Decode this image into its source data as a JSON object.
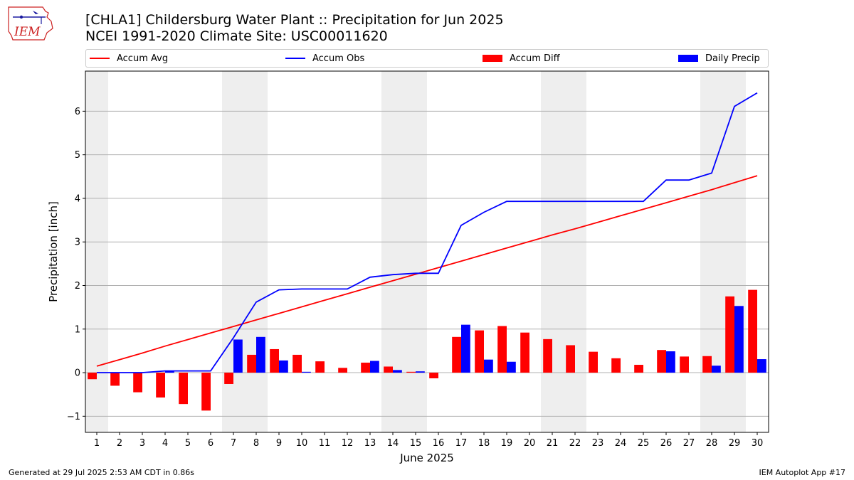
{
  "header": {
    "title_line1": "[CHLA1] Childersburg Water Plant :: Precipitation for Jun 2025",
    "title_line2": "NCEI 1991-2020 Climate Site: USC00011620",
    "logo_text": "IEM"
  },
  "footer": {
    "left": "Generated at 29 Jul 2025 2:53 AM CDT in 0.86s",
    "right": "IEM Autoplot App #17"
  },
  "legend": [
    {
      "label": "Accum Avg",
      "kind": "line",
      "color": "#ff0000"
    },
    {
      "label": "Accum Obs",
      "kind": "line",
      "color": "#0000ff"
    },
    {
      "label": "Accum Diff",
      "kind": "bar",
      "color": "#ff0000"
    },
    {
      "label": "Daily Precip",
      "kind": "bar",
      "color": "#0000ff"
    }
  ],
  "colors": {
    "avg": "#ff0000",
    "obs": "#0000ff",
    "weekend": "#eeeeee",
    "grid": "#b0b0b0"
  },
  "chart_data": {
    "type": "bar",
    "xlabel": "June 2025",
    "ylabel": "Precipitation [inch]",
    "xlim": [
      0.5,
      30.5
    ],
    "ylim": [
      -1.37,
      6.92
    ],
    "yticks": [
      -1,
      0,
      1,
      2,
      3,
      4,
      5,
      6
    ],
    "yticklabels": [
      "−1",
      "0",
      "1",
      "2",
      "3",
      "4",
      "5",
      "6"
    ],
    "days": [
      1,
      2,
      3,
      4,
      5,
      6,
      7,
      8,
      9,
      10,
      11,
      12,
      13,
      14,
      15,
      16,
      17,
      18,
      19,
      20,
      21,
      22,
      23,
      24,
      25,
      26,
      27,
      28,
      29,
      30
    ],
    "weekend_days": [
      1,
      7,
      8,
      14,
      15,
      21,
      22,
      28,
      29
    ],
    "grid": true,
    "series": [
      {
        "name": "Accum Avg",
        "type": "line",
        "values": [
          0.15,
          0.3,
          0.45,
          0.61,
          0.76,
          0.91,
          1.06,
          1.21,
          1.36,
          1.51,
          1.66,
          1.81,
          1.96,
          2.11,
          2.26,
          2.41,
          2.56,
          2.71,
          2.86,
          3.01,
          3.16,
          3.3,
          3.45,
          3.6,
          3.75,
          3.9,
          4.05,
          4.2,
          4.36,
          4.52
        ]
      },
      {
        "name": "Accum Obs",
        "type": "line",
        "values": [
          0.0,
          0.0,
          0.0,
          0.04,
          0.04,
          0.04,
          0.8,
          1.62,
          1.9,
          1.92,
          1.92,
          1.92,
          2.19,
          2.25,
          2.28,
          2.28,
          3.38,
          3.68,
          3.93,
          3.93,
          3.93,
          3.93,
          3.93,
          3.93,
          3.93,
          4.42,
          4.42,
          4.58,
          6.11,
          6.42
        ]
      },
      {
        "name": "Accum Diff",
        "type": "bar",
        "values": [
          -0.15,
          -0.3,
          -0.45,
          -0.57,
          -0.72,
          -0.87,
          -0.26,
          0.41,
          0.54,
          0.41,
          0.26,
          0.11,
          0.23,
          0.14,
          0.02,
          -0.13,
          0.82,
          0.97,
          1.07,
          0.92,
          0.77,
          0.63,
          0.48,
          0.33,
          0.18,
          0.52,
          0.37,
          0.38,
          1.75,
          1.9
        ]
      },
      {
        "name": "Daily Precip",
        "type": "bar",
        "values": [
          0.0,
          0.0,
          0.0,
          0.04,
          0.0,
          0.0,
          0.76,
          0.82,
          0.28,
          0.02,
          0.0,
          0.0,
          0.27,
          0.06,
          0.03,
          0.0,
          1.1,
          0.3,
          0.25,
          0.0,
          0.0,
          0.0,
          0.0,
          0.0,
          0.0,
          0.49,
          0.0,
          0.16,
          1.53,
          0.31
        ]
      }
    ]
  }
}
